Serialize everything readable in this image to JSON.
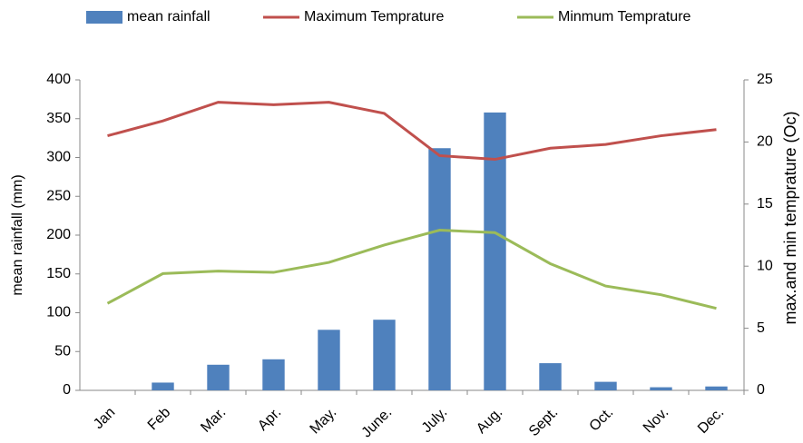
{
  "chart_data": {
    "type": "bar",
    "categories": [
      "Jan",
      "Feb",
      "Mar.",
      "Apr.",
      "May.",
      "June.",
      "July.",
      "Aug.",
      "Sept.",
      "Oct.",
      "Nov.",
      "Dec."
    ],
    "series": [
      {
        "name": "mean rainfall",
        "type": "bar",
        "color": "#4f81bd",
        "values": [
          0,
          10,
          33,
          40,
          78,
          91,
          312,
          358,
          35,
          11,
          4,
          5
        ]
      },
      {
        "name": "Maximum Temprature",
        "type": "line",
        "axis": "y2",
        "color": "#c0504d",
        "values": [
          20.5,
          21.7,
          23.2,
          23.0,
          23.2,
          22.3,
          18.9,
          18.6,
          19.5,
          19.8,
          20.5,
          21.0
        ]
      },
      {
        "name": "Minmum Temprature",
        "type": "line",
        "axis": "y2",
        "color": "#9bbb59",
        "values": [
          7.0,
          9.4,
          9.6,
          9.5,
          10.3,
          11.7,
          12.9,
          12.7,
          10.2,
          8.4,
          7.7,
          6.6
        ]
      }
    ],
    "ylabel": "mean rainfall (mm)",
    "y2label": "max.and min temprature (Oc)",
    "ylim": [
      0,
      400
    ],
    "yticks": [
      0,
      50,
      100,
      150,
      200,
      250,
      300,
      350,
      400
    ],
    "y2lim": [
      0,
      25
    ],
    "y2ticks": [
      0,
      5,
      10,
      15,
      20,
      25
    ],
    "legend": "top"
  }
}
